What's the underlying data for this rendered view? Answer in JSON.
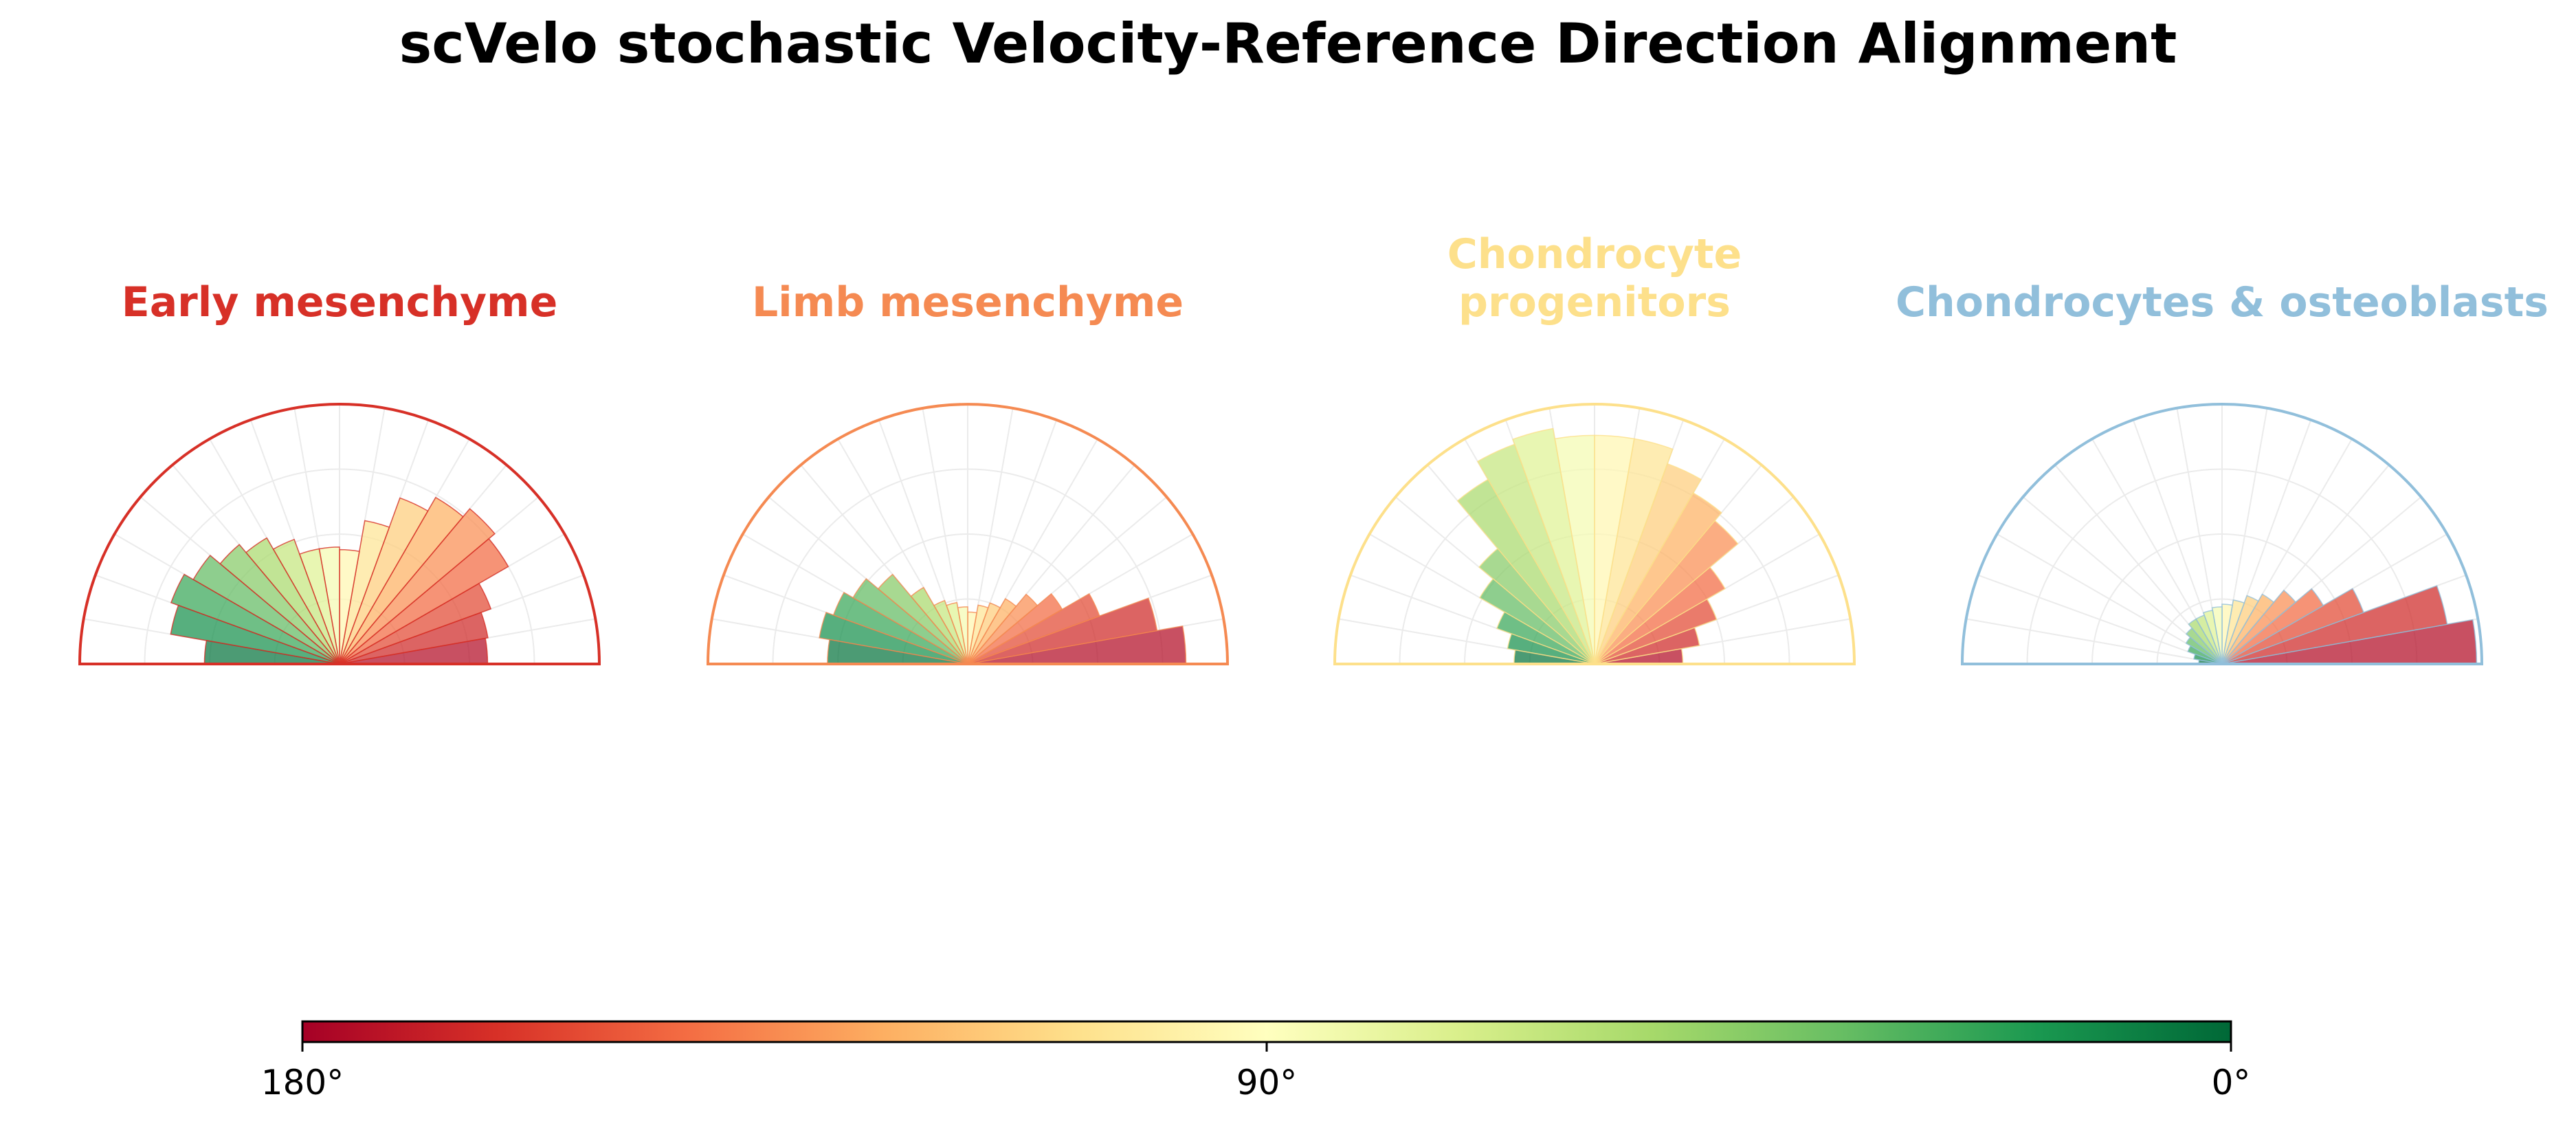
{
  "chart_data": {
    "type": "polar-bar",
    "title": "scVelo stochastic Velocity-Reference Direction Alignment",
    "theta_range_deg": [
      0,
      180
    ],
    "bin_count": 18,
    "bin_width_deg": 10,
    "bin_centers_deg": [
      5,
      15,
      25,
      35,
      45,
      55,
      65,
      75,
      85,
      95,
      105,
      115,
      125,
      135,
      145,
      155,
      165,
      175
    ],
    "r_max": 1.0,
    "colormap": "RdYlGn_r",
    "panels": [
      {
        "title": "Early mesenchyme",
        "color": "#d73027",
        "values": [
          0.57,
          0.58,
          0.62,
          0.75,
          0.78,
          0.74,
          0.68,
          0.56,
          0.44,
          0.45,
          0.45,
          0.51,
          0.56,
          0.6,
          0.65,
          0.69,
          0.66,
          0.52
        ]
      },
      {
        "title": "Limb mesenchyme",
        "color": "#f58a52",
        "values": [
          0.84,
          0.74,
          0.54,
          0.42,
          0.35,
          0.29,
          0.25,
          0.23,
          0.2,
          0.22,
          0.24,
          0.26,
          0.34,
          0.45,
          0.51,
          0.55,
          0.58,
          0.54
        ]
      },
      {
        "title": "Chondrocyte\nprogenitors",
        "color": "#fde08b",
        "values": [
          0.34,
          0.41,
          0.5,
          0.58,
          0.72,
          0.76,
          0.82,
          0.88,
          0.88,
          0.88,
          0.92,
          0.9,
          0.82,
          0.58,
          0.51,
          0.4,
          0.34,
          0.31
        ]
      },
      {
        "title": "Chondrocytes & osteoblasts",
        "color": "#91bfdb",
        "values": [
          0.98,
          0.88,
          0.58,
          0.45,
          0.37,
          0.31,
          0.28,
          0.25,
          0.23,
          0.22,
          0.21,
          0.2,
          0.2,
          0.18,
          0.16,
          0.14,
          0.11,
          0.09
        ]
      }
    ],
    "colorbar": {
      "ticks": [
        "180°",
        "90°",
        "0°"
      ],
      "range_deg": [
        180,
        0
      ]
    }
  }
}
